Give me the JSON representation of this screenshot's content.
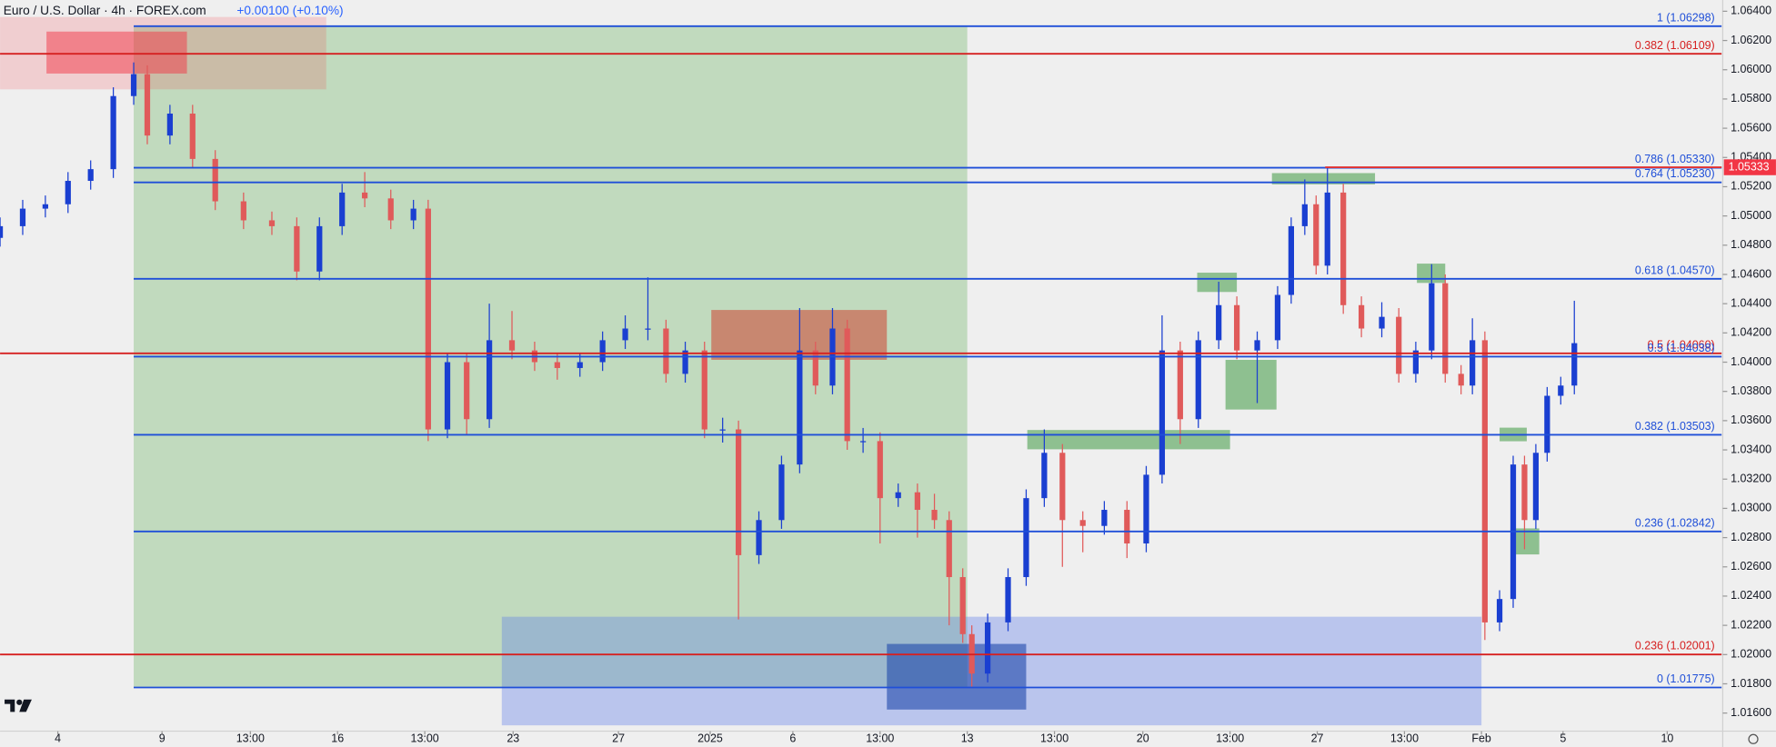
{
  "chart_data": {
    "type": "candlestick",
    "title": "Euro / U.S. Dollar · 4h · FOREX.com",
    "change": "+0.00100 (+0.10%)",
    "xlim": [
      0,
      1520
    ],
    "ylim": [
      1.01484,
      1.06477
    ],
    "xticks": [
      {
        "value": 51,
        "label": "4"
      },
      {
        "value": 143,
        "label": "9"
      },
      {
        "value": 221,
        "label": "13:00"
      },
      {
        "value": 298,
        "label": "16"
      },
      {
        "value": 375,
        "label": "13:00"
      },
      {
        "value": 453,
        "label": "23"
      },
      {
        "value": 546,
        "label": "27"
      },
      {
        "value": 627,
        "label": "2025"
      },
      {
        "value": 700,
        "label": "6"
      },
      {
        "value": 777,
        "label": "13:00"
      },
      {
        "value": 854,
        "label": "13"
      },
      {
        "value": 931,
        "label": "13:00"
      },
      {
        "value": 1009,
        "label": "20"
      },
      {
        "value": 1086,
        "label": "13:00"
      },
      {
        "value": 1163,
        "label": "27"
      },
      {
        "value": 1240,
        "label": "13:00"
      },
      {
        "value": 1308,
        "label": "Feb"
      },
      {
        "value": 1380,
        "label": "5"
      },
      {
        "value": 1472,
        "label": "10"
      }
    ],
    "yticks": [
      {
        "value": 1.064,
        "label": "1.06400"
      },
      {
        "value": 1.062,
        "label": "1.06200"
      },
      {
        "value": 1.06,
        "label": "1.06000"
      },
      {
        "value": 1.058,
        "label": "1.05800"
      },
      {
        "value": 1.056,
        "label": "1.05600"
      },
      {
        "value": 1.054,
        "label": "1.05400"
      },
      {
        "value": 1.052,
        "label": "1.05200"
      },
      {
        "value": 1.05,
        "label": "1.05000"
      },
      {
        "value": 1.048,
        "label": "1.04800"
      },
      {
        "value": 1.046,
        "label": "1.04600"
      },
      {
        "value": 1.044,
        "label": "1.04400"
      },
      {
        "value": 1.042,
        "label": "1.04200"
      },
      {
        "value": 1.04,
        "label": "1.04000"
      },
      {
        "value": 1.038,
        "label": "1.03800"
      },
      {
        "value": 1.036,
        "label": "1.03600"
      },
      {
        "value": 1.034,
        "label": "1.03400"
      },
      {
        "value": 1.032,
        "label": "1.03200"
      },
      {
        "value": 1.03,
        "label": "1.03000"
      },
      {
        "value": 1.028,
        "label": "1.02800"
      },
      {
        "value": 1.026,
        "label": "1.02600"
      },
      {
        "value": 1.024,
        "label": "1.02400"
      },
      {
        "value": 1.022,
        "label": "1.02200"
      },
      {
        "value": 1.02,
        "label": "1.02000"
      },
      {
        "value": 1.018,
        "label": "1.01800"
      },
      {
        "value": 1.016,
        "label": "1.01600"
      }
    ],
    "up_color": "#1a3fd1",
    "down_color": "#e05a5a",
    "candles": {
      "x": [
        0,
        20,
        40,
        60,
        80,
        100,
        118,
        130,
        150,
        170,
        190,
        215,
        240,
        262,
        282,
        302,
        322,
        345,
        365,
        378,
        395,
        412,
        432,
        452,
        472,
        492,
        512,
        532,
        552,
        572,
        588,
        605,
        622,
        638,
        652,
        670,
        690,
        706,
        720,
        735,
        748,
        762,
        777,
        793,
        810,
        825,
        838,
        850,
        858,
        872,
        890,
        906,
        922,
        938,
        956,
        975,
        995,
        1012,
        1026,
        1042,
        1058,
        1076,
        1092,
        1110,
        1128,
        1140,
        1152,
        1162,
        1172,
        1186,
        1202,
        1220,
        1235,
        1250,
        1264,
        1276,
        1290,
        1300,
        1311,
        1324,
        1336,
        1346,
        1356,
        1366,
        1378,
        1390
      ],
      "open": [
        1.0485,
        1.0493,
        1.0505,
        1.0508,
        1.0524,
        1.0532,
        1.0582,
        1.0597,
        1.0555,
        1.057,
        1.0539,
        1.051,
        1.0497,
        1.0493,
        1.0462,
        1.0493,
        1.0516,
        1.0512,
        1.0497,
        1.0505,
        1.0354,
        1.04,
        1.0361,
        1.0415,
        1.0408,
        1.04,
        1.0396,
        1.04,
        1.0415,
        1.0423,
        1.0423,
        1.0392,
        1.0408,
        1.0354,
        1.0354,
        1.0268,
        1.0292,
        1.033,
        1.0408,
        1.0384,
        1.0423,
        1.0346,
        1.0346,
        1.0307,
        1.0311,
        1.0299,
        1.0292,
        1.0253,
        1.0214,
        1.0187,
        1.0222,
        1.0253,
        1.0307,
        1.0338,
        1.0292,
        1.0288,
        1.0299,
        1.0276,
        1.0323,
        1.0408,
        1.0361,
        1.0415,
        1.0439,
        1.0408,
        1.0415,
        1.0446,
        1.0493,
        1.0508,
        1.0466,
        1.0516,
        1.0439,
        1.0423,
        1.0431,
        1.0392,
        1.0408,
        1.0454,
        1.0392,
        1.0384,
        1.0415,
        1.0222,
        1.0238,
        1.033,
        1.0292,
        1.0338,
        1.0377,
        1.0384
      ],
      "high": [
        1.0499,
        1.0511,
        1.0514,
        1.053,
        1.0538,
        1.0588,
        1.0605,
        1.0603,
        1.0576,
        1.0576,
        1.0545,
        1.0516,
        1.0503,
        1.0499,
        1.0499,
        1.0522,
        1.053,
        1.0518,
        1.0511,
        1.0511,
        1.0406,
        1.0406,
        1.044,
        1.0435,
        1.0414,
        1.0406,
        1.0406,
        1.0421,
        1.0432,
        1.0458,
        1.0429,
        1.0414,
        1.0414,
        1.0362,
        1.036,
        1.0298,
        1.0336,
        1.0437,
        1.0414,
        1.0437,
        1.0429,
        1.0355,
        1.0352,
        1.0317,
        1.0317,
        1.031,
        1.0298,
        1.0259,
        1.022,
        1.0228,
        1.0259,
        1.0313,
        1.0354,
        1.0344,
        1.0298,
        1.0305,
        1.0305,
        1.0329,
        1.0432,
        1.0414,
        1.0421,
        1.0455,
        1.0445,
        1.0421,
        1.0452,
        1.0499,
        1.0525,
        1.0514,
        1.0533,
        1.0522,
        1.0445,
        1.0441,
        1.0437,
        1.0414,
        1.0467,
        1.046,
        1.0398,
        1.043,
        1.0421,
        1.0244,
        1.0336,
        1.0336,
        1.0344,
        1.0383,
        1.039,
        1.0442
      ],
      "low": [
        1.0479,
        1.0487,
        1.0499,
        1.0502,
        1.0518,
        1.0526,
        1.0576,
        1.0549,
        1.0549,
        1.0533,
        1.0504,
        1.0491,
        1.0487,
        1.0456,
        1.0456,
        1.0487,
        1.0506,
        1.0491,
        1.0491,
        1.0346,
        1.0348,
        1.035,
        1.0355,
        1.0402,
        1.0394,
        1.0388,
        1.039,
        1.0394,
        1.0409,
        1.0415,
        1.0386,
        1.0386,
        1.0348,
        1.0345,
        1.0224,
        1.0262,
        1.0286,
        1.0324,
        1.0378,
        1.0378,
        1.034,
        1.0338,
        1.0276,
        1.0301,
        1.028,
        1.0286,
        1.022,
        1.0208,
        1.0178,
        1.0181,
        1.0216,
        1.0247,
        1.0301,
        1.026,
        1.027,
        1.0282,
        1.0266,
        1.027,
        1.0317,
        1.0344,
        1.0355,
        1.0409,
        1.0402,
        1.0372,
        1.0409,
        1.044,
        1.0487,
        1.046,
        1.046,
        1.0433,
        1.0417,
        1.0417,
        1.0386,
        1.0386,
        1.0402,
        1.0386,
        1.0378,
        1.0378,
        1.021,
        1.0216,
        1.0232,
        1.0272,
        1.0286,
        1.0332,
        1.0371,
        1.0378
      ],
      "close": [
        1.0493,
        1.0505,
        1.0508,
        1.0524,
        1.0532,
        1.0582,
        1.0597,
        1.0555,
        1.057,
        1.0539,
        1.051,
        1.0497,
        1.0493,
        1.0462,
        1.0493,
        1.0516,
        1.0512,
        1.0497,
        1.0505,
        1.0354,
        1.04,
        1.0361,
        1.0415,
        1.0408,
        1.04,
        1.0396,
        1.04,
        1.0415,
        1.0423,
        1.0423,
        1.0392,
        1.0408,
        1.0354,
        1.0354,
        1.0268,
        1.0292,
        1.033,
        1.0408,
        1.0384,
        1.0423,
        1.0346,
        1.0346,
        1.0307,
        1.0311,
        1.0299,
        1.0292,
        1.0253,
        1.0214,
        1.0187,
        1.0222,
        1.0253,
        1.0307,
        1.0338,
        1.0292,
        1.0288,
        1.0299,
        1.0276,
        1.0323,
        1.0408,
        1.0361,
        1.0415,
        1.0439,
        1.0408,
        1.0415,
        1.0446,
        1.0493,
        1.0508,
        1.0466,
        1.0516,
        1.0439,
        1.0423,
        1.0431,
        1.0392,
        1.0408,
        1.0454,
        1.0392,
        1.0384,
        1.0415,
        1.0222,
        1.0238,
        1.033,
        1.0292,
        1.0338,
        1.0377,
        1.0384,
        1.0413
      ]
    },
    "zones": [
      {
        "x": [
          118,
          854
        ],
        "y": [
          1.06298,
          1.01775
        ],
        "color": "rgba(110,180,100,0.35)"
      },
      {
        "x": [
          0,
          288
        ],
        "y": [
          1.06361,
          1.05866
        ],
        "color": "rgba(242,54,69,0.18)"
      },
      {
        "x": [
          41,
          165
        ],
        "y": [
          1.06261,
          1.05974
        ],
        "color": "rgba(242,54,69,0.5)"
      },
      {
        "x": [
          628,
          783
        ],
        "y": [
          1.04357,
          1.04016
        ],
        "color": "rgba(205,90,70,0.65)"
      },
      {
        "x": [
          443,
          1308
        ],
        "y": [
          1.02259,
          1.01516
        ],
        "color": "rgba(90,120,235,0.35)"
      },
      {
        "x": [
          783,
          906
        ],
        "y": [
          1.02073,
          1.01624
        ],
        "color": "rgba(30,70,170,0.6)"
      },
      {
        "x": [
          1057,
          1092
        ],
        "y": [
          1.04612,
          1.0448
        ],
        "color": "rgba(76,160,80,0.6)"
      },
      {
        "x": [
          1082,
          1127
        ],
        "y": [
          1.04016,
          1.03676
        ],
        "color": "rgba(76,160,80,0.6)"
      },
      {
        "x": [
          907,
          1086
        ],
        "y": [
          1.03536,
          1.03404
        ],
        "color": "rgba(76,160,80,0.6)"
      },
      {
        "x": [
          1123,
          1214
        ],
        "y": [
          1.05293,
          1.05216
        ],
        "color": "rgba(76,160,80,0.6)"
      },
      {
        "x": [
          1251,
          1276
        ],
        "y": [
          1.04674,
          1.04542
        ],
        "color": "rgba(76,160,80,0.6)"
      },
      {
        "x": [
          1324,
          1348
        ],
        "y": [
          1.03552,
          1.03459
        ],
        "color": "rgba(76,160,80,0.6)"
      },
      {
        "x": [
          1334,
          1359
        ],
        "y": [
          1.02863,
          1.02685
        ],
        "color": "rgba(76,160,80,0.6)"
      }
    ],
    "levels": [
      {
        "value": 1.06298,
        "label": "1 (1.06298)",
        "color": "#1f4fd8",
        "from": 118
      },
      {
        "value": 1.06109,
        "label": "0.382 (1.06109)",
        "color": "#d62020",
        "from": 0
      },
      {
        "value": 1.0533,
        "label": "0.786 (1.05330)",
        "color": "#1f4fd8",
        "from": 118
      },
      {
        "value": 1.0523,
        "label": "0.764 (1.05230)",
        "color": "#1f4fd8",
        "from": 118
      },
      {
        "value": 1.0457,
        "label": "0.618 (1.04570)",
        "color": "#1f4fd8",
        "from": 118
      },
      {
        "value": 1.0406,
        "label": "0.5 (1.04060)",
        "color": "#d62020",
        "from": 0
      },
      {
        "value": 1.04038,
        "label": "0.5 (1.04038)",
        "color": "#1f4fd8",
        "from": 118
      },
      {
        "value": 1.03503,
        "label": "0.382 (1.03503)",
        "color": "#1f4fd8",
        "from": 118
      },
      {
        "value": 1.02842,
        "label": "0.236 (1.02842)",
        "color": "#1f4fd8",
        "from": 118
      },
      {
        "value": 1.02001,
        "label": "0.236 (1.02001)",
        "color": "#d62020",
        "from": 0
      },
      {
        "value": 1.01775,
        "label": "0 (1.01775)",
        "color": "#1f4fd8",
        "from": 118
      }
    ],
    "price_marker": 1.05333
  }
}
